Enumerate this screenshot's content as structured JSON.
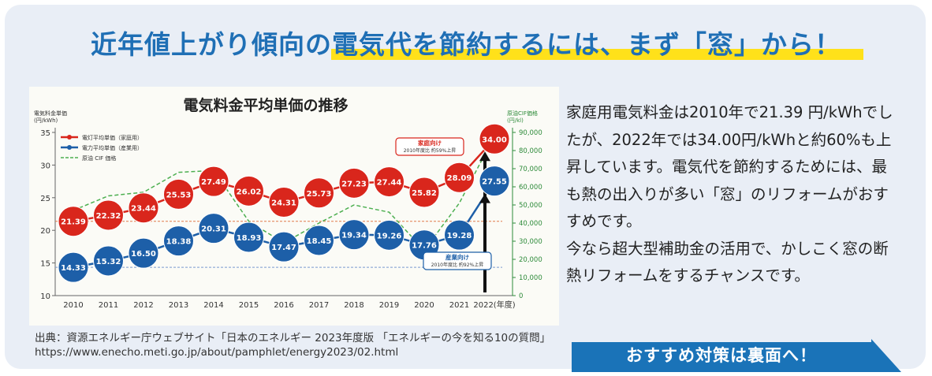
{
  "headline": "近年値上がり傾向の電気代を節約するには、まず「窓」から！",
  "source_lines": [
    "出典：資源エネルギー庁ウェブサイト「日本のエネルギー 2023年度版 「エネルギーの今を知る10の質問」",
    "https://www.enecho.meti.go.jp/about/pamphlet/energy2023/02.html"
  ],
  "body": {
    "paragraph1": "家庭用電気料金は2010年で21.39 円/kWhでしたが、2022年では34.00円/kWhと約60%も上昇しています。電気代を節約するためには、最も熱の出入りが多い「窓」のリフォームがおすすめです。",
    "paragraph2": "今なら超大型補助金の活用で、かしこく窓の断熱リフォームをするチャンスです。"
  },
  "cta_label": "おすすめ対策は裏面へ！",
  "colors": {
    "headline": "#1f6fb5",
    "highlight": "#ffe11a",
    "household": "#d9261c",
    "industrial": "#1d5fa8",
    "crude": "#4caf50",
    "cta": "#1a73b8"
  },
  "chart_data": {
    "type": "line",
    "title": "電気料金平均単価の推移",
    "left_axis_label": [
      "電気料金単価",
      "(円/kWh)"
    ],
    "right_axis_label": [
      "原油CIF価格",
      "(円/kl)"
    ],
    "x": [
      "2010",
      "2011",
      "2012",
      "2013",
      "2014",
      "2015",
      "2016",
      "2017",
      "2018",
      "2019",
      "2020",
      "2021",
      "2022(年度)"
    ],
    "ylim": [
      10,
      35
    ],
    "yticks": [
      10,
      15,
      20,
      25,
      30,
      35
    ],
    "y2lim": [
      0,
      90000
    ],
    "y2ticks": [
      "0",
      "10,000",
      "20,000",
      "30,000",
      "40,000",
      "50,000",
      "60,000",
      "70,000",
      "80,000",
      "90,000"
    ],
    "y2tick_values": [
      0,
      10000,
      20000,
      30000,
      40000,
      50000,
      60000,
      70000,
      80000,
      90000
    ],
    "series": [
      {
        "name": "電灯平均単価（家庭用）",
        "axis": "left",
        "values": [
          21.39,
          22.32,
          23.44,
          25.53,
          27.49,
          26.02,
          24.31,
          25.73,
          27.23,
          27.44,
          25.82,
          28.09,
          34.0
        ],
        "labels": [
          "21.39",
          "22.32",
          "23.44",
          "25.53",
          "27.49",
          "26.02",
          "24.31",
          "25.73",
          "27.23",
          "27.44",
          "25.82",
          "28.09",
          "34.00"
        ]
      },
      {
        "name": "電力平均単価（産業用）",
        "axis": "left",
        "values": [
          14.33,
          15.32,
          16.5,
          18.38,
          20.31,
          18.93,
          17.47,
          18.45,
          19.34,
          19.26,
          17.76,
          19.28,
          27.55
        ],
        "labels": [
          "14.33",
          "15.32",
          "16.50",
          "18.38",
          "20.31",
          "18.93",
          "17.47",
          "18.45",
          "19.34",
          "19.26",
          "17.76",
          "19.28",
          "27.55"
        ]
      },
      {
        "name": "原油 CIF 価格",
        "axis": "right",
        "style": "dashed",
        "values": [
          47000,
          55000,
          57000,
          68000,
          69000,
          41000,
          29000,
          40000,
          50000,
          46000,
          25000,
          51000,
          88000
        ]
      }
    ],
    "annotations": [
      {
        "text": [
          "家庭向け",
          "2010年度比 約59%上昇"
        ],
        "series": 0
      },
      {
        "text": [
          "産業向け",
          "2010年度比 約92%上昇"
        ],
        "series": 1
      }
    ]
  }
}
